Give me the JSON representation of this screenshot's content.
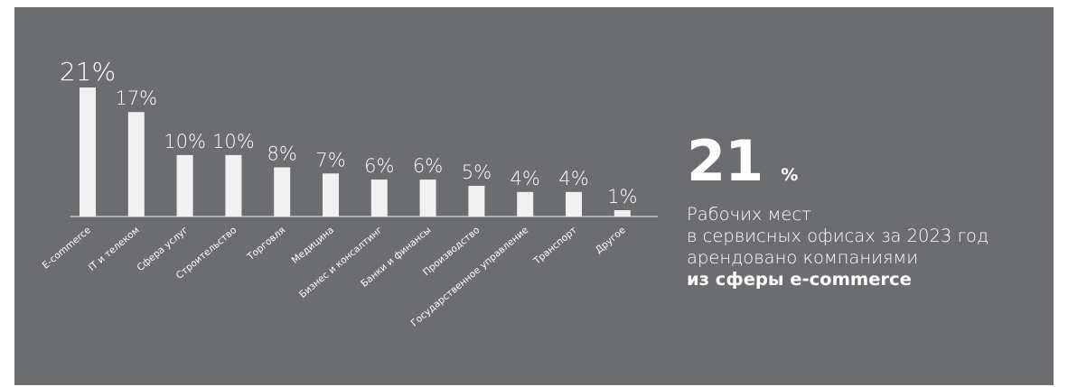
{
  "chart_data": {
    "type": "bar",
    "categories": [
      "E-commerce",
      "IT и телеком",
      "Сфера услуг",
      "Строительство",
      "Торговля",
      "Медицина",
      "Бизнес и консалтинг",
      "Банки и финансы",
      "Производство",
      "Государственное управление",
      "Транспорт",
      "Другое"
    ],
    "values": [
      21,
      17,
      10,
      10,
      8,
      7,
      6,
      6,
      5,
      4,
      4,
      1
    ],
    "value_labels": [
      "21%",
      "17%",
      "10%",
      "10%",
      "8%",
      "7%",
      "6%",
      "6%",
      "5%",
      "4%",
      "4%",
      "1%"
    ],
    "ylim": [
      0,
      21
    ],
    "grid": false,
    "colors": {
      "background": "#6c6d71",
      "bar": "#f1f1f1",
      "text": "#ffffff",
      "axis": "#f1f1f1"
    }
  },
  "stat": {
    "number": "21",
    "unit": "%",
    "line1": "Рабочих мест",
    "line2": "в сервисных офисах за 2023 год",
    "line3": "арендовано компаниями",
    "line4": "из сферы e-commerce"
  }
}
